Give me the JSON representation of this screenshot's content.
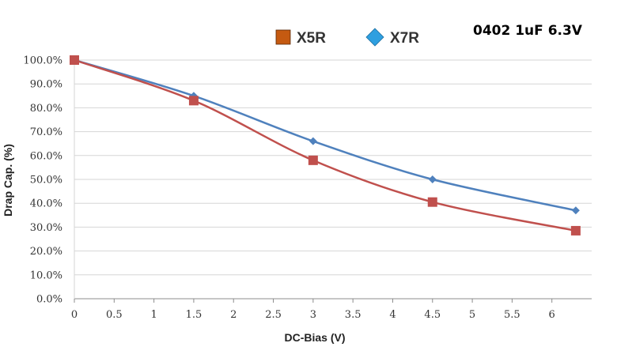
{
  "chart_data": {
    "type": "line",
    "title": "",
    "annotation": "0402 1uF 6.3V",
    "xlabel": "DC-Bias (V)",
    "ylabel": "Drap Cap. (%)",
    "xlim": [
      0,
      6.5
    ],
    "ylim": [
      0,
      100
    ],
    "x_ticks": [
      "0",
      "0.5",
      "1",
      "1.5",
      "2",
      "2.5",
      "3",
      "3.5",
      "4",
      "4.5",
      "5",
      "5.5",
      "6"
    ],
    "y_ticks": [
      "0.0%",
      "10.0%",
      "20.0%",
      "30.0%",
      "40.0%",
      "50.0%",
      "60.0%",
      "70.0%",
      "80.0%",
      "90.0%",
      "100.0%"
    ],
    "grid": "horizontal",
    "legend_position": "top",
    "series": [
      {
        "name": "X5R",
        "marker": "square",
        "color": "#c0504d",
        "legend_color": "#c55a11",
        "x": [
          0,
          1.5,
          3,
          4.5,
          6.3
        ],
        "y": [
          100,
          83,
          58,
          40.5,
          28.5
        ]
      },
      {
        "name": "X7R",
        "marker": "diamond",
        "color": "#4f81bd",
        "legend_color": "#2e9fe0",
        "x": [
          0,
          1.5,
          3,
          4.5,
          6.3
        ],
        "y": [
          100,
          85,
          66,
          50,
          37
        ]
      }
    ]
  }
}
